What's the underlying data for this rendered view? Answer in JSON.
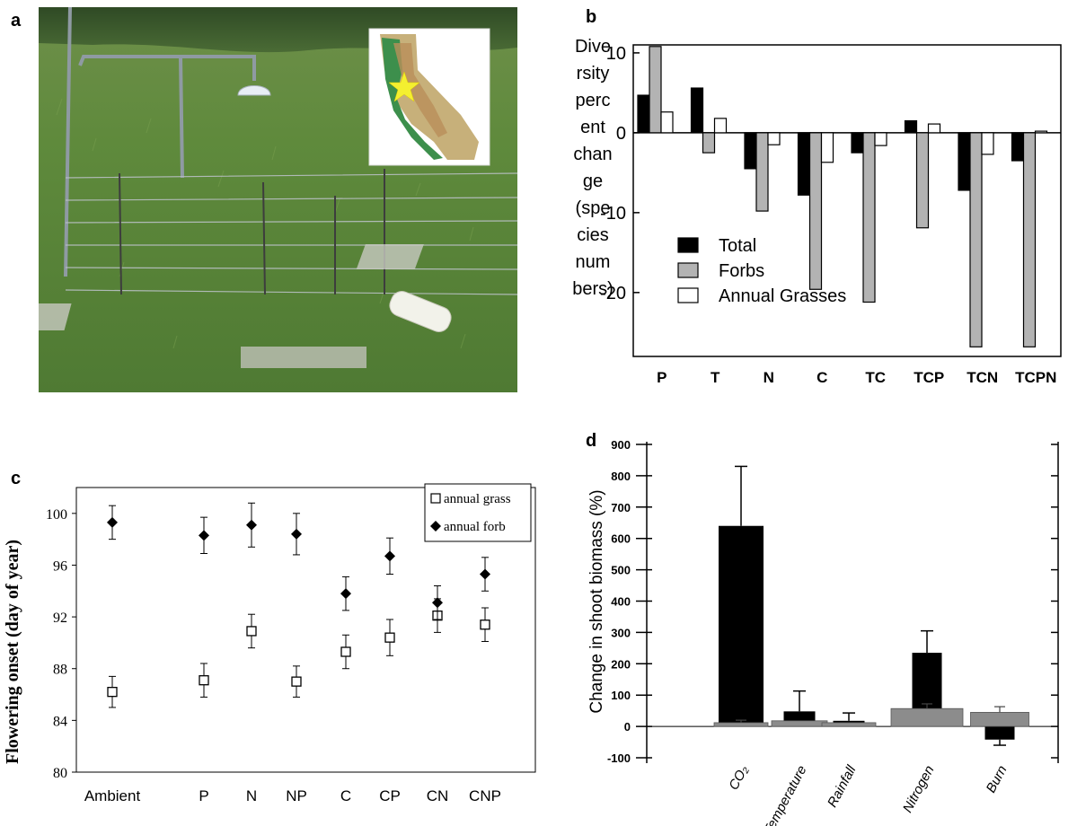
{
  "panels": {
    "a": "a",
    "b": "b",
    "c": "c",
    "d": "d"
  },
  "chart_data": [
    {
      "panel": "b",
      "type": "bar",
      "ylabel": "Diversity percent change (species numbers)",
      "ylabel_lines": [
        "Dive",
        "rsity",
        "perc",
        "ent",
        "chan",
        "ge",
        "(spe",
        "cies",
        "num",
        "bers)"
      ],
      "ylim": [
        -28,
        11
      ],
      "yticks": [
        10,
        0,
        -10,
        -20
      ],
      "categories": [
        "P",
        "T",
        "N",
        "C",
        "TC",
        "TCP",
        "TCN",
        "TCPN"
      ],
      "series": [
        {
          "name": "Total",
          "color": "#000000",
          "values": [
            4.7,
            5.6,
            -4.5,
            -7.8,
            -2.5,
            1.5,
            -7.2,
            -3.5
          ]
        },
        {
          "name": "Forbs",
          "color": "#b3b3b3",
          "values": [
            10.8,
            -2.5,
            -9.8,
            -19.6,
            -21.2,
            -11.9,
            -26.8,
            -26.8
          ]
        },
        {
          "name": "Annual Grasses",
          "color": "#ffffff",
          "values": [
            2.6,
            1.8,
            -1.5,
            -3.7,
            -1.6,
            1.1,
            -2.7,
            0.2
          ]
        }
      ],
      "legend_position": "bottom-left",
      "grid": false
    },
    {
      "panel": "c",
      "type": "scatter",
      "ylabel": "Flowering onset (day of year)",
      "ylim": [
        80,
        102
      ],
      "yticks": [
        80,
        84,
        88,
        92,
        96,
        100
      ],
      "categories": [
        "Ambient",
        "P",
        "N",
        "NP",
        "C",
        "CP",
        "CN",
        "CNP"
      ],
      "series": [
        {
          "name": "annual grass",
          "marker": "open-square",
          "values": [
            86.2,
            87.1,
            90.9,
            87.0,
            89.3,
            90.4,
            92.1,
            91.4
          ],
          "errors": [
            1.2,
            1.3,
            1.3,
            1.2,
            1.3,
            1.4,
            1.3,
            1.3
          ]
        },
        {
          "name": "annual forb",
          "marker": "filled-diamond",
          "values": [
            99.3,
            98.3,
            99.1,
            98.4,
            93.8,
            96.7,
            93.1,
            95.3
          ],
          "errors": [
            1.3,
            1.4,
            1.7,
            1.6,
            1.3,
            1.4,
            1.3,
            1.3
          ]
        }
      ],
      "legend_position": "top-right",
      "grid": false
    },
    {
      "panel": "d",
      "type": "bar",
      "ylabel": "Change in shoot biomass (%)",
      "ylim": [
        -100,
        900
      ],
      "yticks": [
        900,
        800,
        700,
        600,
        500,
        400,
        300,
        200,
        100,
        0,
        -100
      ],
      "categories": [
        "CO₂",
        "Temperature",
        "Rainfall",
        "Nitrogen",
        "Burn"
      ],
      "series": [
        {
          "name": "",
          "color": "#000000",
          "values": [
            640,
            48,
            18,
            235,
            -42
          ],
          "errors": [
            190,
            65,
            25,
            70,
            18
          ]
        },
        {
          "name": "",
          "color": "#8c8c8c",
          "values": [
            12,
            18,
            12,
            57,
            45
          ],
          "errors": [
            8,
            0,
            0,
            15,
            18
          ]
        }
      ],
      "grid": false
    }
  ]
}
